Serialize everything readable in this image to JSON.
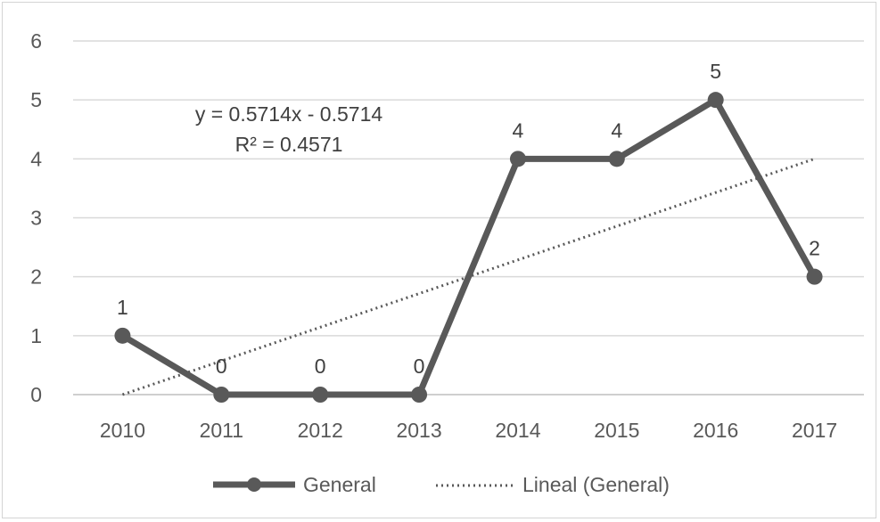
{
  "chart_data": {
    "type": "line",
    "title": "",
    "xlabel": "",
    "ylabel": "",
    "categories": [
      "2010",
      "2011",
      "2012",
      "2013",
      "2014",
      "2015",
      "2016",
      "2017"
    ],
    "ylim": [
      0,
      6
    ],
    "yticks": [
      "0",
      "1",
      "2",
      "3",
      "4",
      "5",
      "6"
    ],
    "grid": true,
    "legend_position": "bottom",
    "series": [
      {
        "name": "General",
        "values": [
          1,
          0,
          0,
          0,
          4,
          4,
          5,
          2
        ],
        "data_labels": [
          "1",
          "0",
          "0",
          "0",
          "4",
          "4",
          "5",
          "2"
        ],
        "color": "#595959"
      }
    ],
    "trendline": {
      "name": "Lineal (General)",
      "type": "linear",
      "slope": 0.5714,
      "intercept": -0.5714,
      "equation": "y = 0.5714x - 0.5714",
      "r_squared": "R² = 0.4571",
      "color": "#595959"
    }
  }
}
